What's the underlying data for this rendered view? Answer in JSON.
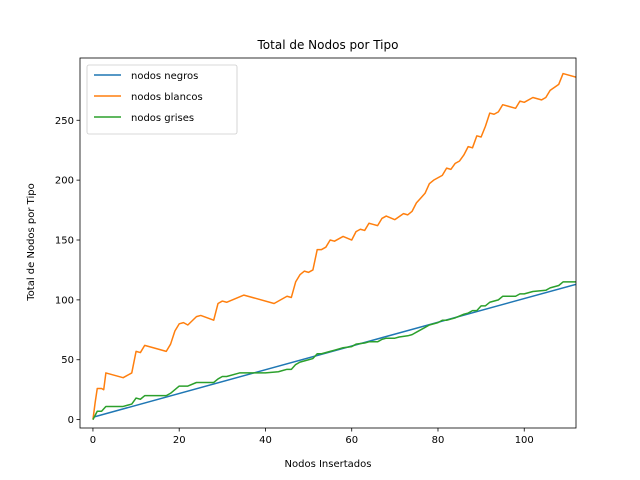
{
  "chart_data": {
    "type": "line",
    "title": "Total de Nodos por Tipo",
    "xlabel": "Nodos Insertados",
    "ylabel": "Total de Nodos por Tipo",
    "xlim": [
      -3,
      112
    ],
    "ylim": [
      -7,
      302
    ],
    "xticks": [
      0,
      20,
      40,
      60,
      80,
      100
    ],
    "yticks": [
      0,
      50,
      100,
      150,
      200,
      250
    ],
    "grid": false,
    "legend_position": "top-left",
    "series": [
      {
        "name": "nodos negros",
        "color": "#1f77b4",
        "points": [
          [
            0,
            2
          ],
          [
            112,
            113
          ]
        ]
      },
      {
        "name": "nodos blancos",
        "color": "#ff7f0e",
        "points": [
          [
            0,
            0
          ],
          [
            0.5,
            14
          ],
          [
            1,
            26
          ],
          [
            2,
            26
          ],
          [
            2.5,
            25
          ],
          [
            3,
            39
          ],
          [
            5,
            37
          ],
          [
            7,
            35
          ],
          [
            9,
            39
          ],
          [
            10,
            57
          ],
          [
            11,
            56
          ],
          [
            12,
            62
          ],
          [
            14,
            60
          ],
          [
            17,
            57
          ],
          [
            18,
            63
          ],
          [
            19,
            74
          ],
          [
            20,
            80
          ],
          [
            21,
            81
          ],
          [
            22,
            79
          ],
          [
            24,
            86
          ],
          [
            25,
            87
          ],
          [
            28,
            83
          ],
          [
            29,
            97
          ],
          [
            30,
            99
          ],
          [
            31,
            98
          ],
          [
            35,
            104
          ],
          [
            42,
            97
          ],
          [
            45,
            103
          ],
          [
            46,
            102
          ],
          [
            47,
            115
          ],
          [
            48,
            121
          ],
          [
            49,
            124
          ],
          [
            50,
            123
          ],
          [
            51,
            125
          ],
          [
            52,
            142
          ],
          [
            53,
            142
          ],
          [
            54,
            144
          ],
          [
            55,
            150
          ],
          [
            56,
            149
          ],
          [
            58,
            153
          ],
          [
            60,
            150
          ],
          [
            61,
            157
          ],
          [
            62,
            159
          ],
          [
            63,
            158
          ],
          [
            64,
            164
          ],
          [
            65,
            163
          ],
          [
            66,
            162
          ],
          [
            67,
            168
          ],
          [
            68,
            170
          ],
          [
            70,
            167
          ],
          [
            72,
            172
          ],
          [
            73,
            171
          ],
          [
            74,
            174
          ],
          [
            75,
            181
          ],
          [
            76,
            185
          ],
          [
            77,
            189
          ],
          [
            78,
            197
          ],
          [
            79,
            200
          ],
          [
            80,
            202
          ],
          [
            81,
            204
          ],
          [
            82,
            210
          ],
          [
            83,
            209
          ],
          [
            84,
            214
          ],
          [
            85,
            216
          ],
          [
            86,
            221
          ],
          [
            87,
            228
          ],
          [
            88,
            227
          ],
          [
            89,
            237
          ],
          [
            90,
            236
          ],
          [
            91,
            245
          ],
          [
            92,
            256
          ],
          [
            93,
            255
          ],
          [
            94,
            257
          ],
          [
            95,
            263
          ],
          [
            98,
            260
          ],
          [
            99,
            266
          ],
          [
            100,
            265
          ],
          [
            102,
            269
          ],
          [
            104,
            267
          ],
          [
            105,
            269
          ],
          [
            106,
            275
          ],
          [
            108,
            280
          ],
          [
            109,
            289
          ],
          [
            112,
            286
          ]
        ]
      },
      {
        "name": "nodos grises",
        "color": "#2ca02c",
        "points": [
          [
            0,
            0
          ],
          [
            1,
            7
          ],
          [
            2,
            7
          ],
          [
            3,
            11
          ],
          [
            4,
            11
          ],
          [
            7,
            11
          ],
          [
            8,
            12
          ],
          [
            9,
            13
          ],
          [
            10,
            18
          ],
          [
            11,
            17
          ],
          [
            12,
            20
          ],
          [
            16,
            20
          ],
          [
            17,
            20
          ],
          [
            18,
            22
          ],
          [
            19,
            25
          ],
          [
            20,
            28
          ],
          [
            22,
            28
          ],
          [
            24,
            31
          ],
          [
            26,
            31
          ],
          [
            28,
            31
          ],
          [
            29,
            34
          ],
          [
            30,
            36
          ],
          [
            31,
            36
          ],
          [
            34,
            39
          ],
          [
            36,
            39
          ],
          [
            38,
            39
          ],
          [
            40,
            39
          ],
          [
            43,
            40
          ],
          [
            44,
            41
          ],
          [
            45,
            42
          ],
          [
            46,
            42
          ],
          [
            47,
            46
          ],
          [
            48,
            48
          ],
          [
            50,
            50
          ],
          [
            51,
            51
          ],
          [
            52,
            55
          ],
          [
            53,
            55
          ],
          [
            55,
            57
          ],
          [
            56,
            58
          ],
          [
            58,
            60
          ],
          [
            60,
            61
          ],
          [
            61,
            63
          ],
          [
            63,
            64
          ],
          [
            64,
            65
          ],
          [
            66,
            65
          ],
          [
            67,
            67
          ],
          [
            68,
            68
          ],
          [
            70,
            68
          ],
          [
            71,
            69
          ],
          [
            73,
            70
          ],
          [
            74,
            71
          ],
          [
            75,
            73
          ],
          [
            76,
            75
          ],
          [
            77,
            77
          ],
          [
            78,
            79
          ],
          [
            80,
            81
          ],
          [
            81,
            83
          ],
          [
            82,
            83
          ],
          [
            83,
            84
          ],
          [
            84,
            85
          ],
          [
            86,
            88
          ],
          [
            87,
            89
          ],
          [
            88,
            91
          ],
          [
            89,
            91
          ],
          [
            90,
            95
          ],
          [
            91,
            95
          ],
          [
            92,
            98
          ],
          [
            94,
            100
          ],
          [
            95,
            103
          ],
          [
            98,
            103
          ],
          [
            99,
            105
          ],
          [
            100,
            105
          ],
          [
            102,
            107
          ],
          [
            105,
            108
          ],
          [
            106,
            110
          ],
          [
            108,
            112
          ],
          [
            109,
            115
          ],
          [
            112,
            115
          ]
        ]
      }
    ]
  }
}
